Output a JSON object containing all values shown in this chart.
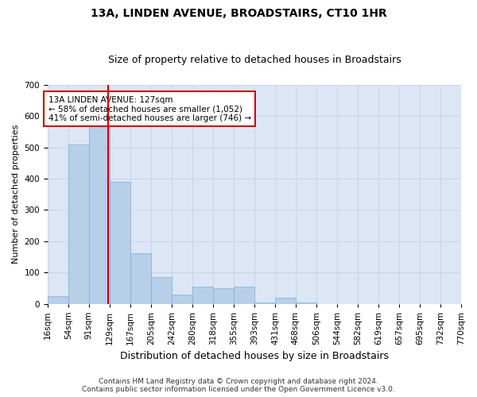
{
  "title": "13A, LINDEN AVENUE, BROADSTAIRS, CT10 1HR",
  "subtitle": "Size of property relative to detached houses in Broadstairs",
  "xlabel": "Distribution of detached houses by size in Broadstairs",
  "ylabel": "Number of detached properties",
  "bar_edges": [
    16,
    54,
    91,
    129,
    167,
    205,
    242,
    280,
    318,
    355,
    393,
    431,
    468,
    506,
    544,
    582,
    619,
    657,
    695,
    732,
    770
  ],
  "bar_heights": [
    25,
    510,
    575,
    390,
    160,
    85,
    30,
    55,
    50,
    55,
    5,
    20,
    5,
    0,
    0,
    0,
    0,
    0,
    0,
    0
  ],
  "bar_color": "#b8cfe8",
  "bar_edge_color": "#7aaed4",
  "property_size": 127,
  "vline_color": "#cc0000",
  "annotation_text": "13A LINDEN AVENUE: 127sqm\n← 58% of detached houses are smaller (1,052)\n41% of semi-detached houses are larger (746) →",
  "annotation_box_facecolor": "#ffffff",
  "annotation_box_edgecolor": "#cc0000",
  "ylim": [
    0,
    700
  ],
  "yticks": [
    0,
    100,
    200,
    300,
    400,
    500,
    600,
    700
  ],
  "grid_color": "#c8d4e8",
  "background_color": "#dce6f5",
  "footer_line1": "Contains HM Land Registry data © Crown copyright and database right 2024.",
  "footer_line2": "Contains public sector information licensed under the Open Government Licence v3.0.",
  "title_fontsize": 10,
  "subtitle_fontsize": 9,
  "xlabel_fontsize": 9,
  "ylabel_fontsize": 8,
  "tick_fontsize": 7.5,
  "annotation_fontsize": 7.5,
  "footer_fontsize": 6.5
}
